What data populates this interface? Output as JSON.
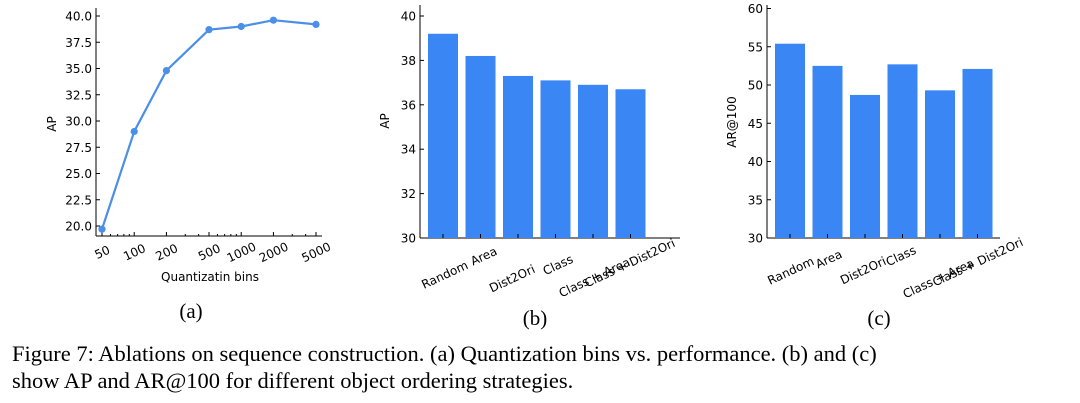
{
  "chart_data": [
    {
      "type": "line",
      "panel_label": "(a)",
      "xlabel": "Quantizatin bins",
      "ylabel": "AP",
      "x_scale": "log",
      "x": [
        50,
        100,
        200,
        500,
        1000,
        2000,
        5000
      ],
      "x_tick_labels": [
        "50",
        "100",
        "200",
        "500",
        "1000",
        "2000",
        "5000"
      ],
      "series": [
        {
          "values": [
            19.7,
            29.0,
            34.8,
            38.7,
            39.0,
            39.6,
            39.2
          ],
          "color": "#4a8fe8"
        }
      ],
      "ylim": [
        19.5,
        40.2
      ],
      "y_ticks": [
        "20.0",
        "22.5",
        "25.0",
        "27.5",
        "30.0",
        "32.5",
        "35.0",
        "37.5",
        "40.0"
      ]
    },
    {
      "type": "bar",
      "panel_label": "(b)",
      "ylabel": "AP",
      "categories": [
        "Random",
        "Area",
        "Dist2Ori",
        "Class",
        "Class + Area",
        "Class + Dist2Ori"
      ],
      "values": [
        39.2,
        38.2,
        37.3,
        37.1,
        36.9,
        36.7
      ],
      "color": "#3a86f4",
      "ylim": [
        30,
        40.5
      ],
      "y_ticks": [
        "30",
        "32",
        "34",
        "36",
        "38",
        "40"
      ]
    },
    {
      "type": "bar",
      "panel_label": "(c)",
      "ylabel": "AR@100",
      "categories": [
        "Random",
        "Area",
        "Dist2Ori",
        "Class",
        "Class + Area",
        "Class + Dist2Ori"
      ],
      "values": [
        55.4,
        52.5,
        48.7,
        52.7,
        49.3,
        52.1
      ],
      "color": "#3a86f4",
      "ylim": [
        30,
        60.5
      ],
      "y_ticks": [
        "30",
        "35",
        "40",
        "45",
        "50",
        "55",
        "60"
      ]
    }
  ],
  "caption": {
    "line1": "Figure 7:  Ablations on sequence construction. (a) Quantization bins vs. performance. (b) and (c)",
    "line2": "show AP and AR@100 for different object ordering strategies."
  }
}
